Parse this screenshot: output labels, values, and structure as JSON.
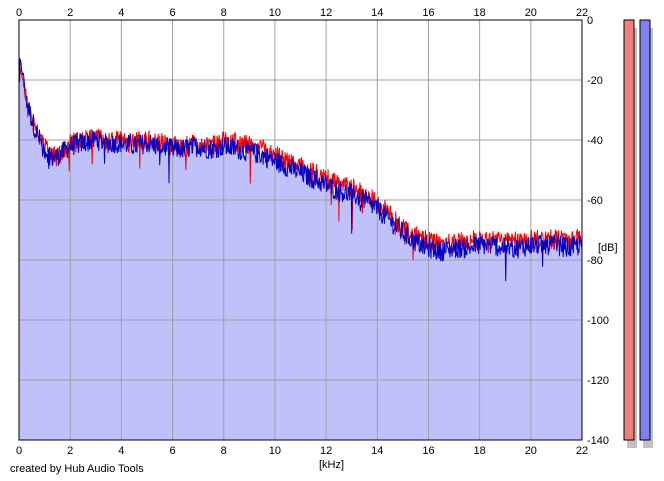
{
  "chart_data": {
    "type": "area",
    "title": "",
    "xlabel": "[kHz]",
    "ylabel": "[dB]",
    "xlim": [
      0,
      22
    ],
    "ylim": [
      -140,
      0
    ],
    "x_ticks": [
      "0",
      "2",
      "4",
      "6",
      "8",
      "10",
      "12",
      "14",
      "16",
      "18",
      "20",
      "22"
    ],
    "y_ticks": [
      "0",
      "-20",
      "-40",
      "-60",
      "-80",
      "-100",
      "-120",
      "-140"
    ],
    "grid": true,
    "fill_color": "#c0c0fa",
    "series": [
      {
        "color": "#ff0000",
        "x": [
          0,
          0.1,
          0.2,
          0.3,
          0.5,
          0.7,
          1.0,
          1.3,
          1.6,
          2.0,
          2.5,
          3.0,
          3.5,
          4.0,
          4.5,
          5.0,
          5.5,
          6.0,
          6.5,
          7.0,
          7.5,
          8.0,
          8.5,
          9.0,
          9.5,
          10.0,
          10.5,
          11.0,
          11.5,
          12.0,
          12.5,
          13.0,
          13.5,
          14.0,
          14.5,
          15.0,
          15.5,
          16.0,
          16.5,
          17.0,
          17.5,
          18.0,
          18.5,
          19.0,
          19.5,
          20.0,
          20.5,
          21.0,
          21.5,
          22.0
        ],
        "values": [
          -14,
          -18,
          -22,
          -28,
          -34,
          -38,
          -42,
          -45,
          -44,
          -41,
          -40,
          -39,
          -40,
          -40,
          -41,
          -40,
          -41,
          -42,
          -42,
          -41,
          -42,
          -40,
          -41,
          -42,
          -43,
          -45,
          -47,
          -49,
          -51,
          -53,
          -55,
          -56,
          -58,
          -61,
          -65,
          -69,
          -72,
          -74,
          -75,
          -74,
          -74,
          -73,
          -73,
          -74,
          -74,
          -73,
          -73,
          -73,
          -74,
          -73
        ]
      },
      {
        "color": "#0000c8",
        "x": [
          0,
          0.1,
          0.2,
          0.3,
          0.5,
          0.7,
          1.0,
          1.3,
          1.6,
          2.0,
          2.5,
          3.0,
          3.5,
          4.0,
          4.5,
          5.0,
          5.5,
          6.0,
          6.5,
          7.0,
          7.5,
          8.0,
          8.5,
          9.0,
          9.5,
          10.0,
          10.5,
          11.0,
          11.5,
          12.0,
          12.5,
          13.0,
          13.5,
          14.0,
          14.5,
          15.0,
          15.5,
          16.0,
          16.5,
          17.0,
          17.5,
          18.0,
          18.5,
          19.0,
          19.5,
          20.0,
          20.5,
          21.0,
          21.5,
          22.0
        ],
        "values": [
          -12,
          -16,
          -20,
          -27,
          -33,
          -38,
          -43,
          -46,
          -45,
          -42,
          -41,
          -40,
          -41,
          -41,
          -42,
          -41,
          -42,
          -43,
          -43,
          -42,
          -43,
          -42,
          -43,
          -44,
          -45,
          -47,
          -49,
          -51,
          -53,
          -55,
          -57,
          -58,
          -60,
          -63,
          -67,
          -71,
          -74,
          -76,
          -77,
          -76,
          -76,
          -75,
          -75,
          -76,
          -76,
          -75,
          -75,
          -75,
          -76,
          -75
        ]
      }
    ],
    "meters": [
      {
        "color": "#f08080",
        "value_db": -140
      },
      {
        "color": "#8080f0",
        "value_db": -140
      }
    ]
  },
  "footer": {
    "credit": "created by Hub Audio Tools"
  }
}
